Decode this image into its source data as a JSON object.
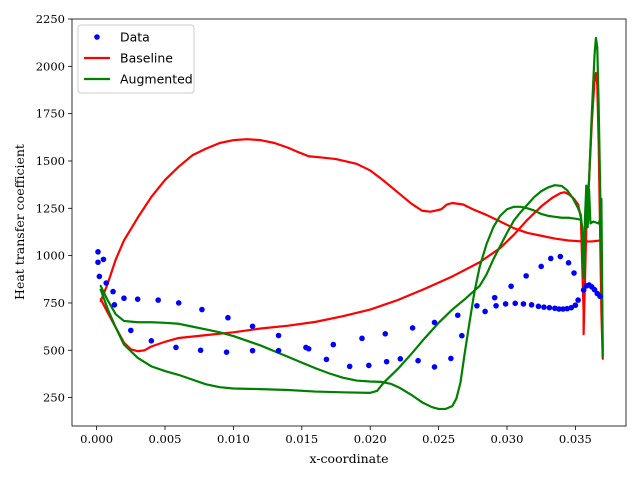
{
  "chart_data": {
    "type": "line",
    "title": "",
    "xlabel": "x-coordinate",
    "ylabel": "Heat transfer coefficient",
    "xlim": [
      -0.0018,
      0.0387
    ],
    "ylim": [
      100,
      2250
    ],
    "xticks": [
      0,
      0.005,
      0.01,
      0.015,
      0.02,
      0.025,
      0.03,
      0.035
    ],
    "xtick_labels": [
      "0.000",
      "0.005",
      "0.010",
      "0.015",
      "0.020",
      "0.025",
      "0.030",
      "0.035"
    ],
    "yticks": [
      250,
      500,
      750,
      1000,
      1250,
      1500,
      1750,
      2000,
      2250
    ],
    "ytick_labels": [
      "250",
      "500",
      "750",
      "1000",
      "1250",
      "1500",
      "1750",
      "2000",
      "2250"
    ],
    "grid": false,
    "legend_position": "top-left",
    "series": [
      {
        "name": "Data",
        "kind": "scatter",
        "color": "#0000ff",
        "points": [
          [
            0.0001,
            1020
          ],
          [
            0.0001,
            965
          ],
          [
            0.0002,
            890
          ],
          [
            0.0005,
            980
          ],
          [
            0.0007,
            855
          ],
          [
            0.0012,
            810
          ],
          [
            0.0013,
            740
          ],
          [
            0.002,
            775
          ],
          [
            0.0025,
            605
          ],
          [
            0.003,
            770
          ],
          [
            0.004,
            550
          ],
          [
            0.0045,
            765
          ],
          [
            0.0058,
            515
          ],
          [
            0.006,
            750
          ],
          [
            0.0076,
            500
          ],
          [
            0.0077,
            715
          ],
          [
            0.0095,
            490
          ],
          [
            0.0096,
            672
          ],
          [
            0.0114,
            498
          ],
          [
            0.0114,
            627
          ],
          [
            0.0133,
            498
          ],
          [
            0.0133,
            578
          ],
          [
            0.0153,
            515
          ],
          [
            0.0155,
            508
          ],
          [
            0.0168,
            452
          ],
          [
            0.0173,
            530
          ],
          [
            0.0185,
            415
          ],
          [
            0.0194,
            563
          ],
          [
            0.0199,
            420
          ],
          [
            0.0211,
            587
          ],
          [
            0.0212,
            440
          ],
          [
            0.0222,
            455
          ],
          [
            0.0231,
            618
          ],
          [
            0.0235,
            445
          ],
          [
            0.0247,
            647
          ],
          [
            0.0247,
            412
          ],
          [
            0.0259,
            457
          ],
          [
            0.0264,
            685
          ],
          [
            0.0267,
            577
          ],
          [
            0.0278,
            735
          ],
          [
            0.0284,
            705
          ],
          [
            0.0291,
            778
          ],
          [
            0.0292,
            735
          ],
          [
            0.0299,
            745
          ],
          [
            0.0303,
            838
          ],
          [
            0.0306,
            748
          ],
          [
            0.0312,
            745
          ],
          [
            0.0314,
            893
          ],
          [
            0.0318,
            740
          ],
          [
            0.0323,
            732
          ],
          [
            0.0325,
            943
          ],
          [
            0.0327,
            728
          ],
          [
            0.0331,
            725
          ],
          [
            0.0332,
            985
          ],
          [
            0.0335,
            722
          ],
          [
            0.0338,
            718
          ],
          [
            0.0339,
            995
          ],
          [
            0.0341,
            718
          ],
          [
            0.0344,
            720
          ],
          [
            0.0345,
            962
          ],
          [
            0.0347,
            725
          ],
          [
            0.0349,
            908
          ],
          [
            0.035,
            738
          ],
          [
            0.0352,
            765
          ],
          [
            0.0356,
            818
          ],
          [
            0.0358,
            840
          ],
          [
            0.036,
            845
          ],
          [
            0.0362,
            835
          ],
          [
            0.0364,
            820
          ],
          [
            0.0366,
            800
          ],
          [
            0.0368,
            785
          ]
        ]
      },
      {
        "name": "Baseline",
        "kind": "line",
        "color": "#ff0000",
        "points": [
          [
            0.0003,
            760
          ],
          [
            0.0008,
            850
          ],
          [
            0.0014,
            980
          ],
          [
            0.002,
            1080
          ],
          [
            0.003,
            1200
          ],
          [
            0.004,
            1310
          ],
          [
            0.005,
            1400
          ],
          [
            0.006,
            1470
          ],
          [
            0.007,
            1530
          ],
          [
            0.008,
            1565
          ],
          [
            0.009,
            1595
          ],
          [
            0.01,
            1610
          ],
          [
            0.011,
            1615
          ],
          [
            0.012,
            1610
          ],
          [
            0.013,
            1595
          ],
          [
            0.014,
            1570
          ],
          [
            0.0148,
            1545
          ],
          [
            0.0155,
            1525
          ],
          [
            0.0165,
            1518
          ],
          [
            0.0175,
            1510
          ],
          [
            0.019,
            1485
          ],
          [
            0.02,
            1450
          ],
          [
            0.021,
            1395
          ],
          [
            0.022,
            1335
          ],
          [
            0.023,
            1275
          ],
          [
            0.0238,
            1237
          ],
          [
            0.0244,
            1232
          ],
          [
            0.0248,
            1238
          ],
          [
            0.0252,
            1245
          ],
          [
            0.0256,
            1270
          ],
          [
            0.026,
            1278
          ],
          [
            0.0268,
            1270
          ],
          [
            0.0275,
            1245
          ],
          [
            0.0285,
            1215
          ],
          [
            0.0295,
            1180
          ],
          [
            0.0305,
            1145
          ],
          [
            0.0315,
            1120
          ],
          [
            0.0325,
            1105
          ],
          [
            0.0335,
            1090
          ],
          [
            0.0345,
            1080
          ],
          [
            0.0355,
            1075
          ],
          [
            0.0362,
            1075
          ],
          [
            0.0368,
            1080
          ]
        ]
      },
      {
        "name": "Baseline",
        "kind": "line",
        "color": "#ff0000",
        "points": [
          [
            0.0003,
            770
          ],
          [
            0.0008,
            700
          ],
          [
            0.0014,
            620
          ],
          [
            0.002,
            540
          ],
          [
            0.0025,
            505
          ],
          [
            0.003,
            495
          ],
          [
            0.0035,
            500
          ],
          [
            0.004,
            520
          ],
          [
            0.005,
            545
          ],
          [
            0.006,
            565
          ],
          [
            0.008,
            580
          ],
          [
            0.01,
            595
          ],
          [
            0.012,
            615
          ],
          [
            0.014,
            630
          ],
          [
            0.016,
            650
          ],
          [
            0.018,
            680
          ],
          [
            0.02,
            715
          ],
          [
            0.022,
            765
          ],
          [
            0.024,
            825
          ],
          [
            0.026,
            890
          ],
          [
            0.028,
            965
          ],
          [
            0.0295,
            1040
          ],
          [
            0.0305,
            1110
          ],
          [
            0.0315,
            1190
          ],
          [
            0.0325,
            1260
          ],
          [
            0.0333,
            1305
          ],
          [
            0.0339,
            1330
          ],
          [
            0.0342,
            1335
          ],
          [
            0.0345,
            1325
          ],
          [
            0.0349,
            1300
          ],
          [
            0.0352,
            1270
          ],
          [
            0.0354,
            1200
          ],
          [
            0.0355,
            950
          ],
          [
            0.0356,
            700
          ],
          [
            0.0356,
            585
          ],
          [
            0.0358,
            1150
          ],
          [
            0.036,
            1400
          ],
          [
            0.0362,
            1700
          ],
          [
            0.0364,
            1930
          ],
          [
            0.0365,
            1965
          ],
          [
            0.0366,
            1900
          ],
          [
            0.0367,
            1600
          ],
          [
            0.0368,
            1150
          ],
          [
            0.0369,
            700
          ],
          [
            0.037,
            455
          ]
        ]
      },
      {
        "name": "Augmented",
        "kind": "line",
        "color": "#008000",
        "points": [
          [
            0.0003,
            840
          ],
          [
            0.0008,
            765
          ],
          [
            0.0014,
            690
          ],
          [
            0.002,
            655
          ],
          [
            0.003,
            648
          ],
          [
            0.004,
            648
          ],
          [
            0.005,
            645
          ],
          [
            0.006,
            640
          ],
          [
            0.007,
            625
          ],
          [
            0.008,
            610
          ],
          [
            0.009,
            595
          ],
          [
            0.01,
            575
          ],
          [
            0.011,
            550
          ],
          [
            0.012,
            525
          ],
          [
            0.013,
            495
          ],
          [
            0.014,
            465
          ],
          [
            0.015,
            435
          ],
          [
            0.016,
            405
          ],
          [
            0.017,
            378
          ],
          [
            0.018,
            355
          ],
          [
            0.019,
            340
          ],
          [
            0.02,
            335
          ],
          [
            0.0208,
            333
          ],
          [
            0.0215,
            323
          ],
          [
            0.0222,
            300
          ],
          [
            0.023,
            265
          ],
          [
            0.0238,
            225
          ],
          [
            0.0245,
            200
          ],
          [
            0.025,
            190
          ],
          [
            0.0255,
            190
          ],
          [
            0.026,
            205
          ],
          [
            0.0263,
            245
          ],
          [
            0.0266,
            330
          ],
          [
            0.0269,
            480
          ],
          [
            0.0272,
            620
          ],
          [
            0.0276,
            800
          ],
          [
            0.028,
            940
          ],
          [
            0.0285,
            1060
          ],
          [
            0.029,
            1150
          ],
          [
            0.0295,
            1210
          ],
          [
            0.03,
            1245
          ],
          [
            0.0305,
            1258
          ],
          [
            0.031,
            1258
          ],
          [
            0.0315,
            1250
          ],
          [
            0.032,
            1238
          ],
          [
            0.0325,
            1220
          ],
          [
            0.033,
            1210
          ],
          [
            0.0335,
            1205
          ],
          [
            0.034,
            1200
          ],
          [
            0.0345,
            1200
          ],
          [
            0.035,
            1195
          ],
          [
            0.0354,
            1190
          ],
          [
            0.0355,
            1150
          ],
          [
            0.0356,
            880
          ],
          [
            0.0357,
            1200
          ],
          [
            0.0358,
            1370
          ],
          [
            0.0359,
            1150
          ],
          [
            0.036,
            1350
          ],
          [
            0.0361,
            1170
          ],
          [
            0.0363,
            1180
          ],
          [
            0.0365,
            1175
          ],
          [
            0.0367,
            1170
          ],
          [
            0.0368,
            1190
          ],
          [
            0.0369,
            1300
          ],
          [
            0.037,
            500
          ]
        ]
      },
      {
        "name": "Augmented",
        "kind": "line",
        "color": "#008000",
        "points": [
          [
            0.0003,
            820
          ],
          [
            0.0008,
            720
          ],
          [
            0.0014,
            620
          ],
          [
            0.002,
            530
          ],
          [
            0.003,
            460
          ],
          [
            0.004,
            415
          ],
          [
            0.005,
            390
          ],
          [
            0.006,
            370
          ],
          [
            0.007,
            345
          ],
          [
            0.008,
            320
          ],
          [
            0.009,
            305
          ],
          [
            0.01,
            298
          ],
          [
            0.012,
            295
          ],
          [
            0.014,
            290
          ],
          [
            0.016,
            282
          ],
          [
            0.018,
            278
          ],
          [
            0.02,
            275
          ],
          [
            0.0205,
            285
          ],
          [
            0.021,
            330
          ],
          [
            0.022,
            400
          ],
          [
            0.023,
            480
          ],
          [
            0.024,
            565
          ],
          [
            0.025,
            645
          ],
          [
            0.026,
            715
          ],
          [
            0.027,
            775
          ],
          [
            0.028,
            840
          ],
          [
            0.0285,
            900
          ],
          [
            0.029,
            980
          ],
          [
            0.0295,
            1050
          ],
          [
            0.03,
            1120
          ],
          [
            0.0305,
            1185
          ],
          [
            0.031,
            1230
          ],
          [
            0.0315,
            1270
          ],
          [
            0.032,
            1310
          ],
          [
            0.0325,
            1340
          ],
          [
            0.033,
            1360
          ],
          [
            0.0335,
            1372
          ],
          [
            0.034,
            1368
          ],
          [
            0.0344,
            1345
          ],
          [
            0.0348,
            1305
          ],
          [
            0.0352,
            1250
          ],
          [
            0.0354,
            1215
          ],
          [
            0.0356,
            1050
          ],
          [
            0.0358,
            1190
          ],
          [
            0.036,
            1400
          ],
          [
            0.0362,
            1750
          ],
          [
            0.0364,
            2060
          ],
          [
            0.0365,
            2150
          ],
          [
            0.0366,
            2100
          ],
          [
            0.0367,
            1800
          ],
          [
            0.0368,
            1400
          ],
          [
            0.0369,
            1000
          ],
          [
            0.037,
            470
          ]
        ]
      }
    ]
  }
}
